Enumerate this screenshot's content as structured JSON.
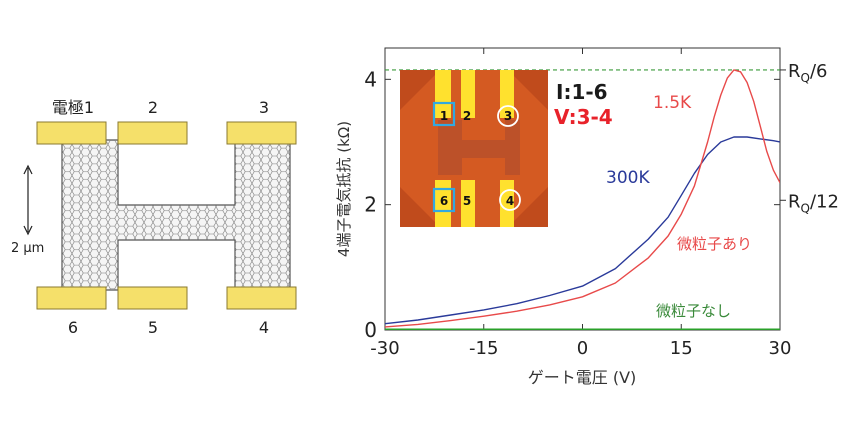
{
  "device": {
    "electrode_labels": [
      "電極1",
      "2",
      "3",
      "6",
      "5",
      "4"
    ],
    "scale_label": "2 μm",
    "pad_color": "#f5e06a",
    "pad_edge": "#8a7a30"
  },
  "inset": {
    "labels_top": [
      "1",
      "2",
      "3"
    ],
    "labels_bottom": [
      "6",
      "5",
      "4"
    ],
    "current_label": "I:1-6",
    "voltage_label": "V:3-4",
    "current_color": "#1a1a1a",
    "voltage_color": "#e8222a"
  },
  "chart_data": {
    "type": "line",
    "xlabel": "ゲート電圧 (V)",
    "ylabel": "4端子電気抵抗 (kΩ)",
    "xlim": [
      -30,
      30
    ],
    "ylim": [
      0,
      4.5
    ],
    "x_ticks": [
      "-30",
      "-15",
      "0",
      "15",
      "30"
    ],
    "y_ticks": [
      "0",
      "2",
      "4"
    ],
    "right_axis_labels": [
      {
        "value": 4.15,
        "label": "RQ/6"
      },
      {
        "value": 2.07,
        "label": "RQ/12"
      }
    ],
    "reference_line": {
      "value": 4.15,
      "color": "#3a9a3a",
      "style": "dashed"
    },
    "grid": false,
    "series": [
      {
        "name": "300K",
        "color": "#2a3a9a",
        "points": [
          [
            -30,
            0.1
          ],
          [
            -25,
            0.16
          ],
          [
            -20,
            0.24
          ],
          [
            -15,
            0.32
          ],
          [
            -10,
            0.42
          ],
          [
            -5,
            0.55
          ],
          [
            0,
            0.7
          ],
          [
            5,
            0.98
          ],
          [
            10,
            1.45
          ],
          [
            13,
            1.8
          ],
          [
            15,
            2.15
          ],
          [
            17,
            2.5
          ],
          [
            19,
            2.8
          ],
          [
            21,
            3.0
          ],
          [
            23,
            3.08
          ],
          [
            25,
            3.08
          ],
          [
            27,
            3.05
          ],
          [
            29,
            3.02
          ],
          [
            30,
            3.0
          ]
        ],
        "label": "300K",
        "label_color": "#2a3a9a"
      },
      {
        "name": "1.5K",
        "color": "#e84a4a",
        "points": [
          [
            -30,
            0.05
          ],
          [
            -25,
            0.09
          ],
          [
            -20,
            0.15
          ],
          [
            -15,
            0.22
          ],
          [
            -10,
            0.3
          ],
          [
            -5,
            0.4
          ],
          [
            0,
            0.53
          ],
          [
            5,
            0.75
          ],
          [
            10,
            1.15
          ],
          [
            13,
            1.5
          ],
          [
            15,
            1.85
          ],
          [
            17,
            2.3
          ],
          [
            19,
            3.0
          ],
          [
            20,
            3.4
          ],
          [
            21,
            3.75
          ],
          [
            22,
            4.02
          ],
          [
            23,
            4.15
          ],
          [
            24,
            4.12
          ],
          [
            25,
            3.95
          ],
          [
            26,
            3.65
          ],
          [
            27,
            3.25
          ],
          [
            28,
            2.85
          ],
          [
            29,
            2.55
          ],
          [
            30,
            2.35
          ]
        ],
        "label": "1.5K",
        "label_color": "#e84a4a"
      },
      {
        "name": "微粒子なし",
        "color": "#2aa02a",
        "points": [
          [
            -30,
            0.0
          ],
          [
            30,
            0.0
          ]
        ],
        "label": "微粒子なし",
        "label_color": "#3a8a3a"
      }
    ],
    "annotations": [
      {
        "text": "微粒子あり",
        "color": "#e84a4a"
      }
    ]
  }
}
